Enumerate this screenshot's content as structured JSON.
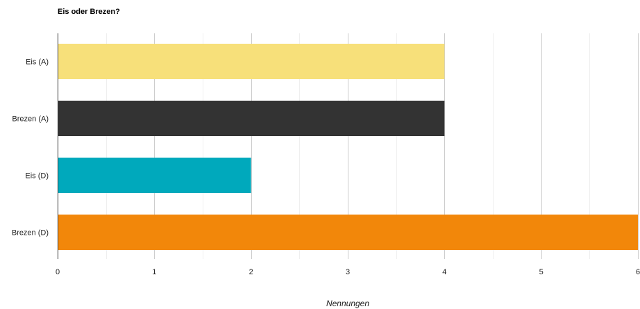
{
  "chart_data": {
    "type": "bar",
    "orientation": "horizontal",
    "title": "Eis oder Brezen?",
    "xlabel": "Nennungen",
    "ylabel": "",
    "categories": [
      "Eis (A)",
      "Brezen (A)",
      "Eis (D)",
      "Brezen (D)"
    ],
    "values": [
      4,
      4,
      2,
      6
    ],
    "colors": [
      "#f7e07a",
      "#333333",
      "#00a9bc",
      "#f2870a"
    ],
    "xlim": [
      0,
      6
    ],
    "xticks": [
      0,
      1,
      2,
      3,
      4,
      5,
      6
    ],
    "grid": true
  }
}
